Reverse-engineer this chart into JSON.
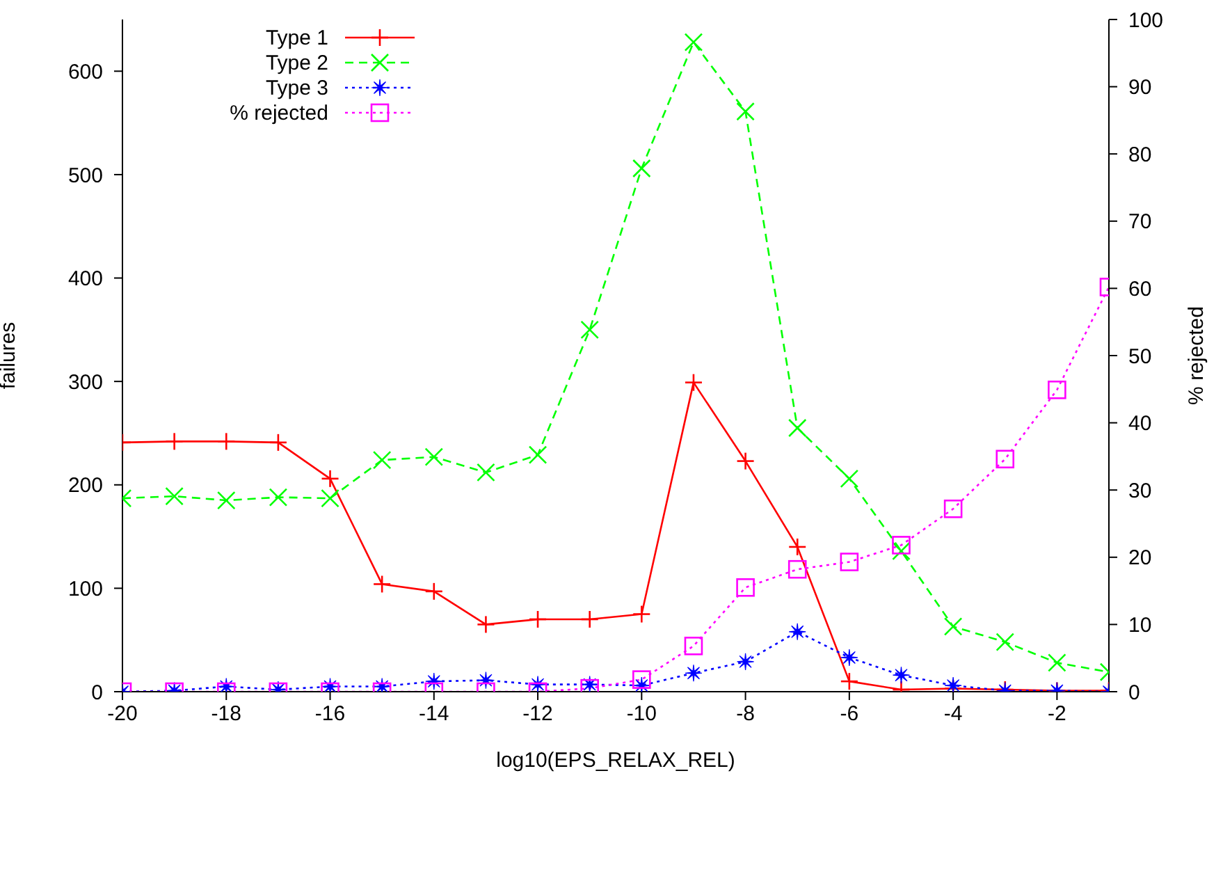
{
  "chart_data": {
    "type": "line",
    "xlabel": "log10(EPS_RELAX_REL)",
    "ylabel": "failures",
    "y2label": "% rejected",
    "x": [
      -20,
      -19,
      -18,
      -17,
      -16,
      -15,
      -14,
      -13,
      -12,
      -11,
      -10,
      -9,
      -8,
      -7,
      -6,
      -5,
      -4,
      -3,
      -2,
      -1
    ],
    "xlim": [
      -20,
      -1
    ],
    "xticks": [
      -20,
      -18,
      -16,
      -14,
      -12,
      -10,
      -8,
      -6,
      -4,
      -2
    ],
    "ylim": [
      0,
      650
    ],
    "yticks": [
      0,
      100,
      200,
      300,
      400,
      500,
      600
    ],
    "y2lim": [
      0,
      100
    ],
    "y2ticks": [
      0,
      10,
      20,
      30,
      40,
      50,
      60,
      70,
      80,
      90,
      100
    ],
    "grid": false,
    "legend": "top left",
    "series": [
      {
        "name": "Type 1",
        "color": "#ff0000",
        "marker": "plus",
        "line_style": "solid",
        "values": [
          241,
          242,
          242,
          241,
          206,
          104,
          97,
          65,
          70,
          70,
          75,
          299,
          223,
          140,
          10,
          2,
          3,
          2,
          1,
          1
        ]
      },
      {
        "name": "Type 2",
        "color": "#00ff00",
        "marker": "cross",
        "line_style": "dashed",
        "values": [
          187,
          189,
          185,
          188,
          187,
          224,
          227,
          212,
          229,
          350,
          506,
          628,
          561,
          255,
          206,
          136,
          63,
          48,
          28,
          19
        ]
      },
      {
        "name": "Type 3",
        "color": "#0000ff",
        "marker": "star",
        "line_style": "dotted",
        "values": [
          0,
          1,
          5,
          2,
          5,
          5,
          10,
          11,
          7,
          7,
          6,
          18,
          29,
          58,
          33,
          16,
          6,
          1,
          1,
          0
        ]
      },
      {
        "name": "% rejected",
        "color": "#ff00ff",
        "marker": "square",
        "line_style": "dotted",
        "axis": "y2",
        "values": [
          0,
          0,
          0,
          0,
          0,
          0,
          0,
          0,
          0,
          0.5,
          1.8,
          6.8,
          15.5,
          18.2,
          19.3,
          21.8,
          27.2,
          34.6,
          44.9,
          60.2
        ]
      }
    ]
  }
}
